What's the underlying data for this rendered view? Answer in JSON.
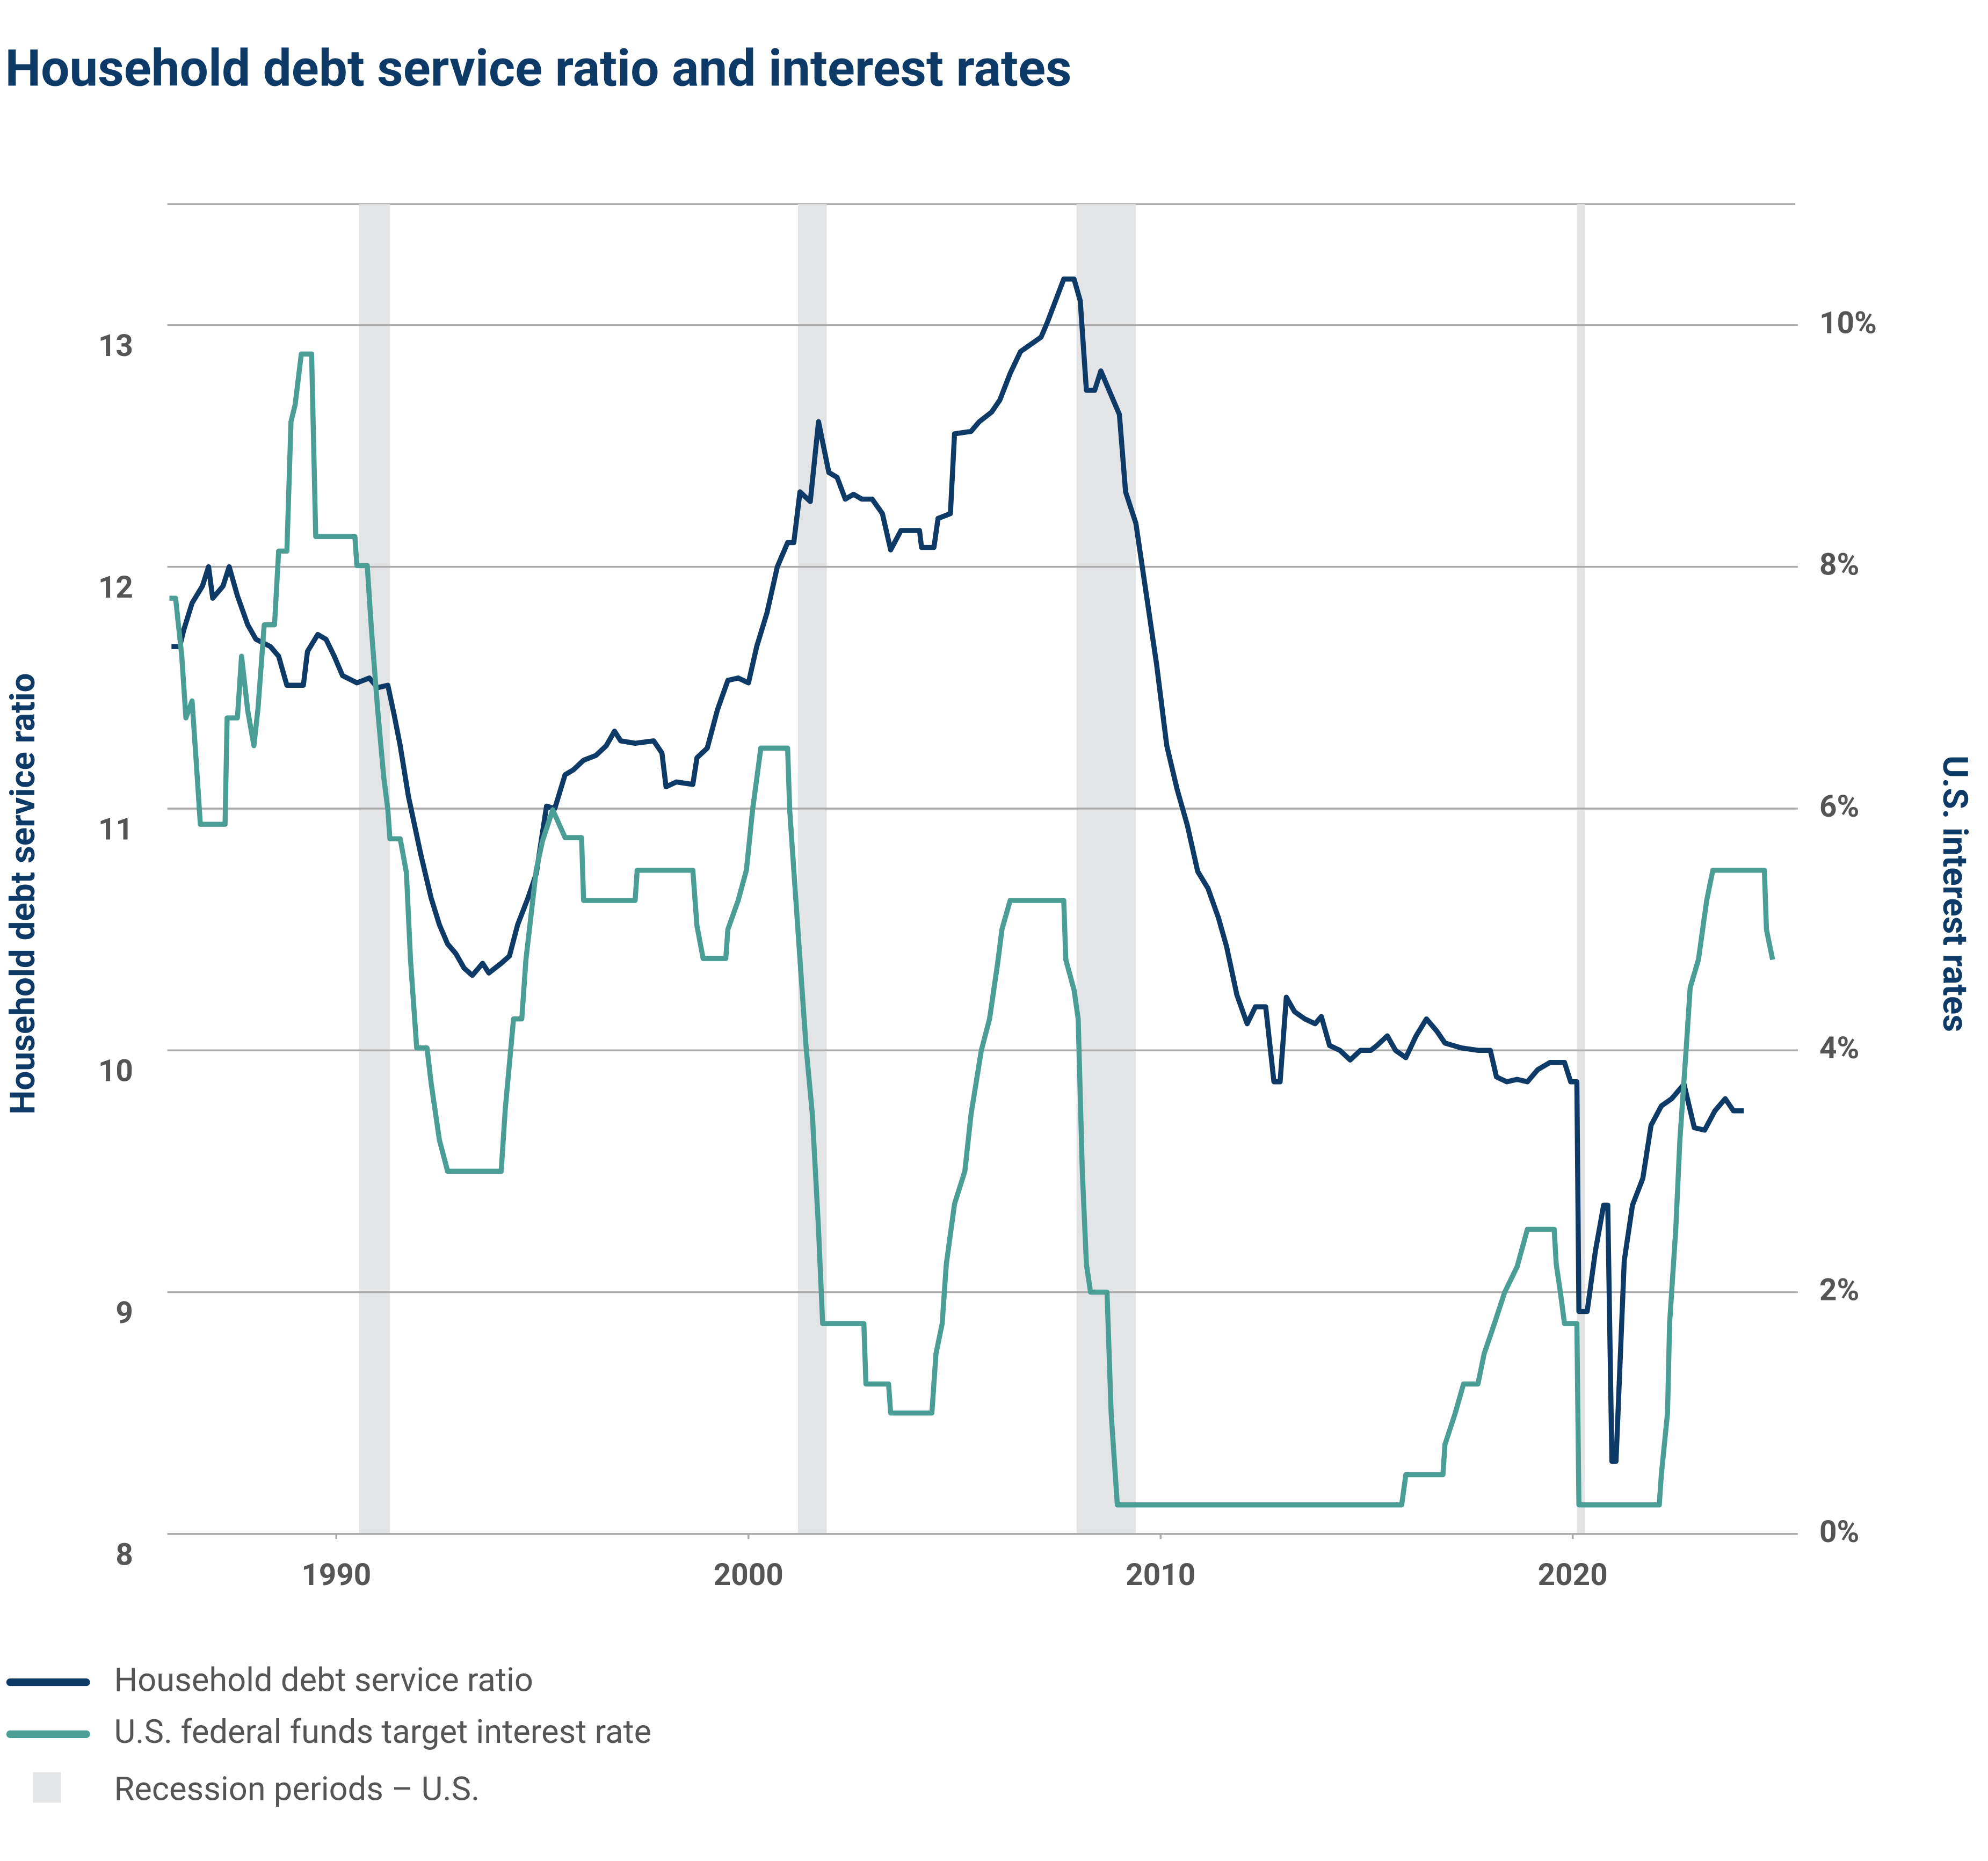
{
  "chart_data": {
    "type": "line",
    "title": "Household debt service ratio and interest rates",
    "y_label": "Household debt service ratio",
    "y2_label": "U.S. interest rates",
    "xlim": [
      1985.9,
      2025.4
    ],
    "xticks": [
      1990,
      2000,
      2010,
      2020
    ],
    "ylim": [
      8,
      13.5
    ],
    "yticks": [
      8,
      9,
      10,
      11,
      12,
      13
    ],
    "y2lim": [
      0,
      11
    ],
    "y2ticks": [
      {
        "value": 0,
        "label": "0%"
      },
      {
        "value": 2,
        "label": "2%"
      },
      {
        "value": 4,
        "label": "4%"
      },
      {
        "value": 6,
        "label": "6%"
      },
      {
        "value": 8,
        "label": "8%"
      },
      {
        "value": 10,
        "label": "10%"
      }
    ],
    "grid": true,
    "recessions": {
      "name": "Recession periods – U.S.",
      "color": "#e3e4e6",
      "periods": [
        [
          1990.55,
          1991.3
        ],
        [
          2001.2,
          2001.9
        ],
        [
          2007.96,
          2009.4
        ],
        [
          2020.1,
          2020.3
        ]
      ]
    },
    "series": [
      {
        "name": "Household debt service ratio",
        "color": "#0d3a66",
        "axis": "y",
        "x": [
          1986.0,
          1986.2,
          1986.3,
          1986.5,
          1986.75,
          1986.9,
          1987.0,
          1987.25,
          1987.4,
          1987.6,
          1987.85,
          1988.05,
          1988.4,
          1988.6,
          1988.8,
          1989.2,
          1989.3,
          1989.55,
          1989.75,
          1989.95,
          1990.15,
          1990.5,
          1990.8,
          1991.0,
          1991.25,
          1991.4,
          1991.55,
          1991.75,
          1992.05,
          1992.3,
          1992.5,
          1992.7,
          1992.9,
          1993.1,
          1993.3,
          1993.55,
          1993.7,
          1994.0,
          1994.2,
          1994.4,
          1994.65,
          1994.85,
          1995.1,
          1995.3,
          1995.55,
          1995.75,
          1996.0,
          1996.3,
          1996.55,
          1996.75,
          1996.9,
          1997.25,
          1997.7,
          1997.9,
          1998.0,
          1998.25,
          1998.65,
          1998.75,
          1999.0,
          1999.25,
          1999.5,
          1999.75,
          2000.0,
          2000.2,
          2000.45,
          2000.7,
          2000.95,
          2001.1,
          2001.25,
          2001.5,
          2001.7,
          2001.95,
          2002.15,
          2002.35,
          2002.55,
          2002.75,
          2003.0,
          2003.25,
          2003.45,
          2003.7,
          2004.15,
          2004.2,
          2004.5,
          2004.6,
          2004.9,
          2005.0,
          2005.4,
          2005.6,
          2005.9,
          2006.1,
          2006.35,
          2006.6,
          2006.85,
          2007.1,
          2007.25,
          2007.45,
          2007.65,
          2007.9,
          2008.05,
          2008.2,
          2008.4,
          2008.55,
          2008.75,
          2009.0,
          2009.15,
          2009.4,
          2009.65,
          2009.9,
          2010.15,
          2010.4,
          2010.65,
          2010.9,
          2011.15,
          2011.4,
          2011.6,
          2011.85,
          2012.1,
          2012.3,
          2012.55,
          2012.75,
          2012.9,
          2013.05,
          2013.25,
          2013.5,
          2013.75,
          2013.9,
          2014.1,
          2014.35,
          2014.6,
          2014.85,
          2015.1,
          2015.25,
          2015.5,
          2015.7,
          2015.95,
          2016.2,
          2016.45,
          2016.7,
          2016.9,
          2017.3,
          2017.7,
          2018.0,
          2018.15,
          2018.4,
          2018.65,
          2018.9,
          2019.15,
          2019.45,
          2019.8,
          2019.95,
          2020.1,
          2020.15,
          2020.35,
          2020.55,
          2020.75,
          2020.85,
          2020.95,
          2021.05,
          2021.25,
          2021.45,
          2021.7,
          2021.9,
          2022.15,
          2022.4,
          2022.7,
          2022.95,
          2023.2,
          2023.45,
          2023.7,
          2023.9,
          2024.15
        ],
        "values": [
          11.67,
          11.67,
          11.74,
          11.85,
          11.92,
          12.0,
          11.87,
          11.92,
          12.0,
          11.88,
          11.76,
          11.7,
          11.67,
          11.63,
          11.51,
          11.51,
          11.65,
          11.72,
          11.7,
          11.63,
          11.55,
          11.52,
          11.54,
          11.5,
          11.51,
          11.39,
          11.26,
          11.05,
          10.81,
          10.63,
          10.52,
          10.44,
          10.4,
          10.34,
          10.31,
          10.36,
          10.32,
          10.36,
          10.39,
          10.52,
          10.63,
          10.73,
          11.01,
          11.0,
          11.14,
          11.16,
          11.2,
          11.22,
          11.26,
          11.32,
          11.28,
          11.27,
          11.28,
          11.23,
          11.09,
          11.11,
          11.1,
          11.21,
          11.25,
          11.41,
          11.53,
          11.54,
          11.52,
          11.67,
          11.81,
          12.0,
          12.1,
          12.1,
          12.31,
          12.27,
          12.6,
          12.39,
          12.37,
          12.28,
          12.3,
          12.28,
          12.28,
          12.22,
          12.07,
          12.15,
          12.15,
          12.08,
          12.08,
          12.2,
          12.22,
          12.55,
          12.56,
          12.6,
          12.64,
          12.69,
          12.8,
          12.89,
          12.92,
          12.95,
          13.01,
          13.1,
          13.19,
          13.19,
          13.1,
          12.73,
          12.73,
          12.81,
          12.73,
          12.63,
          12.31,
          12.18,
          11.89,
          11.6,
          11.26,
          11.08,
          10.93,
          10.74,
          10.67,
          10.55,
          10.43,
          10.23,
          10.11,
          10.18,
          10.18,
          9.87,
          9.87,
          10.22,
          10.16,
          10.13,
          10.11,
          10.14,
          10.02,
          10.0,
          9.96,
          10.0,
          10.0,
          10.02,
          10.06,
          10.0,
          9.97,
          10.06,
          10.13,
          10.08,
          10.03,
          10.01,
          10.0,
          10.0,
          9.89,
          9.87,
          9.88,
          9.87,
          9.92,
          9.95,
          9.95,
          9.87,
          9.87,
          8.92,
          8.92,
          9.17,
          9.36,
          9.36,
          8.3,
          8.3,
          9.13,
          9.36,
          9.47,
          9.69,
          9.77,
          9.8,
          9.86,
          9.68,
          9.67,
          9.75,
          9.8,
          9.75,
          9.75
        ]
      },
      {
        "name": "U.S. federal funds target interest rate",
        "color": "#4a9e96",
        "axis": "y2",
        "x": [
          1985.95,
          1986.1,
          1986.25,
          1986.35,
          1986.5,
          1986.6,
          1986.7,
          1987.3,
          1987.35,
          1987.6,
          1987.7,
          1987.85,
          1988.0,
          1988.1,
          1988.25,
          1988.5,
          1988.6,
          1988.8,
          1988.9,
          1989.0,
          1989.15,
          1989.4,
          1989.5,
          1990.45,
          1990.5,
          1990.75,
          1990.85,
          1991.0,
          1991.15,
          1991.25,
          1991.3,
          1991.55,
          1991.7,
          1991.8,
          1991.95,
          1992.2,
          1992.3,
          1992.5,
          1992.7,
          1994.0,
          1994.1,
          1994.3,
          1994.5,
          1994.6,
          1994.85,
          1995.0,
          1995.25,
          1995.55,
          1995.95,
          1996.0,
          1997.25,
          1997.3,
          1998.65,
          1998.75,
          1998.9,
          1999.45,
          1999.5,
          1999.75,
          1999.95,
          2000.1,
          2000.3,
          2000.95,
          2001.0,
          2001.1,
          2001.25,
          2001.4,
          2001.55,
          2001.7,
          2001.8,
          2002.8,
          2002.85,
          2003.4,
          2003.45,
          2004.45,
          2004.55,
          2004.7,
          2004.8,
          2005.0,
          2005.25,
          2005.4,
          2005.65,
          2005.85,
          2006.05,
          2006.15,
          2006.35,
          2007.65,
          2007.7,
          2007.9,
          2008.0,
          2008.1,
          2008.2,
          2008.3,
          2008.7,
          2008.8,
          2008.95,
          2015.85,
          2015.95,
          2016.85,
          2016.9,
          2017.15,
          2017.35,
          2017.7,
          2017.85,
          2018.1,
          2018.35,
          2018.65,
          2018.9,
          2019.55,
          2019.6,
          2019.7,
          2019.8,
          2020.1,
          2020.15,
          2022.1,
          2022.15,
          2022.3,
          2022.35,
          2022.5,
          2022.6,
          2022.75,
          2022.85,
          2023.05,
          2023.25,
          2023.4,
          2024.65,
          2024.7,
          2024.85
        ],
        "values": [
          7.74,
          7.74,
          7.26,
          6.75,
          6.89,
          6.39,
          5.87,
          5.87,
          6.75,
          6.75,
          7.26,
          6.81,
          6.52,
          6.83,
          7.52,
          7.52,
          8.13,
          8.13,
          9.2,
          9.34,
          9.76,
          9.76,
          8.25,
          8.25,
          8.01,
          8.01,
          7.49,
          6.83,
          6.26,
          5.99,
          5.75,
          5.75,
          5.47,
          4.75,
          4.02,
          4.02,
          3.73,
          3.26,
          3.0,
          3.0,
          3.52,
          4.26,
          4.26,
          4.75,
          5.49,
          5.73,
          5.99,
          5.76,
          5.76,
          5.24,
          5.24,
          5.49,
          5.49,
          5.03,
          4.76,
          4.76,
          5.0,
          5.24,
          5.49,
          5.99,
          6.5,
          6.5,
          5.99,
          5.49,
          4.75,
          4.02,
          3.47,
          2.52,
          1.74,
          1.74,
          1.24,
          1.24,
          1.0,
          1.0,
          1.49,
          1.74,
          2.23,
          2.73,
          3.0,
          3.47,
          4.0,
          4.26,
          4.73,
          5.0,
          5.24,
          5.24,
          4.75,
          4.5,
          4.26,
          3.0,
          2.23,
          2.0,
          2.0,
          1.0,
          0.24,
          0.24,
          0.49,
          0.49,
          0.74,
          1.0,
          1.24,
          1.24,
          1.49,
          1.74,
          2.0,
          2.21,
          2.52,
          2.52,
          2.23,
          2.0,
          1.74,
          1.74,
          0.24,
          0.24,
          0.49,
          1.0,
          1.74,
          2.52,
          3.26,
          4.0,
          4.52,
          4.75,
          5.24,
          5.49,
          5.49,
          5.0,
          4.75
        ]
      }
    ]
  }
}
